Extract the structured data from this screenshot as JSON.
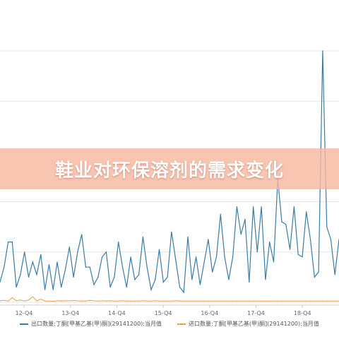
{
  "banner": {
    "title": "鞋业对环保溶剂的需求变化"
  },
  "colors": {
    "export": "#3a7ca5",
    "import": "#e8a04a",
    "grid": "#e6e6e6",
    "banner": "#f6b8a0"
  },
  "chart_data": {
    "type": "line",
    "title": "",
    "xlabel": "",
    "ylabel": "",
    "grid": true,
    "legend": "bottom",
    "ylim": [
      0,
      100
    ],
    "x_tick_labels": [
      "12-Q4",
      "13-Q4",
      "14-Q4",
      "15-Q4",
      "16-Q4",
      "17-Q4",
      "18-Q4"
    ],
    "series": [
      {
        "name": "出口数量:丁酮[甲基乙基(甲)酮](29141200):当月值",
        "values": [
          8,
          14,
          24,
          24,
          6,
          11,
          20,
          10,
          16,
          11,
          19,
          5,
          15,
          5,
          16,
          6,
          13,
          22,
          10,
          20,
          27,
          14,
          14,
          7,
          10,
          18,
          20,
          6,
          10,
          24,
          14,
          6,
          18,
          9,
          11,
          26,
          14,
          5,
          9,
          21,
          8,
          10,
          28,
          17,
          6,
          4,
          26,
          9,
          18,
          7,
          16,
          25,
          12,
          18,
          35,
          18,
          9,
          18,
          38,
          27,
          33,
          8,
          38,
          20,
          38,
          9,
          24,
          16,
          49,
          32,
          31,
          21,
          38,
          19,
          18,
          36,
          25,
          10,
          12,
          100,
          30,
          25,
          11,
          25
        ]
      },
      {
        "name": "进口数量:丁酮[甲基乙基(甲)酮](29141200):当月值",
        "values": [
          0.6,
          0.8,
          0.5,
          1.8,
          0.6,
          0.9,
          0.5,
          0.9,
          2.2,
          0.6,
          1.2,
          0.5,
          0.5,
          0.4,
          0.6,
          0.5,
          0.6,
          0.6,
          0.7,
          0.6,
          0.5,
          0.5,
          0.8,
          0.6,
          0.5,
          0.6,
          0.5,
          0.6,
          0.5,
          0.5,
          0.6,
          0.5,
          0.5,
          0.5,
          0.5,
          0.6,
          0.5,
          0.5,
          0.6,
          0.5,
          0.5,
          0.5,
          0.5,
          0.6,
          0.5,
          0.5,
          0.5,
          0.5,
          0.5,
          0.5,
          0.5,
          0.5,
          0.5,
          0.5,
          0.5,
          0.5,
          0.5,
          0.5,
          0.5,
          0.5,
          0.5,
          0.5,
          0.5,
          0.5,
          0.5,
          0.5,
          0.5,
          0.5,
          0.5,
          0.5,
          0.5,
          0.5,
          0.5,
          0.5,
          0.5,
          0.5,
          0.5,
          0.5,
          0.5,
          0.5,
          0.5,
          0.5,
          0.5,
          0.5
        ]
      }
    ]
  }
}
